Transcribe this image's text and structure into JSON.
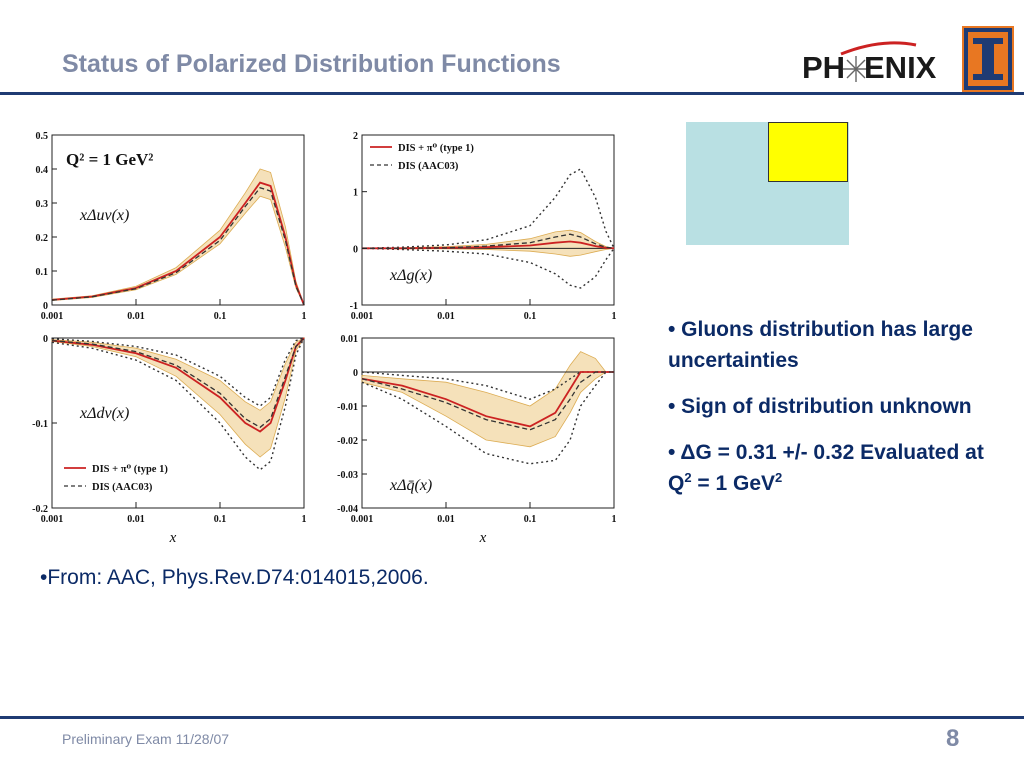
{
  "slide": {
    "title": "Status of Polarized Distribution Functions",
    "footer": "Preliminary Exam 11/28/07",
    "page_number": "8",
    "reference": "•From: AAC, Phys.Rev.D74:014015,2006."
  },
  "logos": {
    "phenix": {
      "left": "PH",
      "right": "ENIX"
    },
    "illinois": "I"
  },
  "bullets": {
    "b1": "• Gluons distribution has large uncertainties",
    "b2": "• Sign of distribution unknown",
    "b3_prefix": "• ΔG = 0.31 +/- 0.32 Evaluated at Q",
    "b3_sup1": "2",
    "b3_mid": " = 1 GeV",
    "b3_sup2": "2"
  },
  "colors": {
    "accent_rule": "#1f3b73",
    "title_gray": "#7f8aa6",
    "bullet_blue": "#0b2a66",
    "curve_red": "#cc2222",
    "band": "#f5deb3",
    "blue_box": "#b9e0e3",
    "yellow_box": "#ffff00"
  },
  "chart_data": [
    {
      "type": "line",
      "label": "xΔuv(x)",
      "annotation": "Q² = 1 GeV²",
      "xscale": "log",
      "xlim": [
        0.001,
        1
      ],
      "ylim": [
        0,
        0.5
      ],
      "xticks": [
        "0.001",
        "0.01",
        "0.1",
        "1"
      ],
      "yticks": [
        "0",
        "0.1",
        "0.2",
        "0.3",
        "0.4",
        "0.5"
      ],
      "ytick_values": [
        0,
        0.1,
        0.2,
        0.3,
        0.4,
        0.5
      ],
      "legend": [],
      "x": [
        0.001,
        0.003,
        0.01,
        0.03,
        0.1,
        0.2,
        0.3,
        0.4,
        0.6,
        0.8,
        1.0
      ],
      "series": [
        {
          "name": "DIS + π⁰ (type 1)",
          "style": "solid",
          "values": [
            0.015,
            0.025,
            0.05,
            0.1,
            0.2,
            0.3,
            0.36,
            0.35,
            0.2,
            0.06,
            0.0
          ]
        },
        {
          "name": "DIS (AAC03)",
          "style": "dashed",
          "values": [
            0.014,
            0.024,
            0.048,
            0.095,
            0.19,
            0.29,
            0.345,
            0.335,
            0.19,
            0.055,
            0.0
          ]
        }
      ],
      "band_upper": [
        0.017,
        0.027,
        0.055,
        0.11,
        0.22,
        0.33,
        0.4,
        0.39,
        0.23,
        0.07,
        0.0
      ],
      "band_lower": [
        0.013,
        0.022,
        0.045,
        0.09,
        0.18,
        0.27,
        0.32,
        0.31,
        0.17,
        0.05,
        0.0
      ]
    },
    {
      "type": "line",
      "label": "xΔg(x)",
      "xscale": "log",
      "xlim": [
        0.001,
        1
      ],
      "ylim": [
        -1,
        2
      ],
      "xticks": [
        "0.001",
        "0.01",
        "0.1",
        "1"
      ],
      "yticks": [
        "-1",
        "0",
        "1",
        "2"
      ],
      "ytick_values": [
        -1,
        0,
        1,
        2
      ],
      "legend": [
        "DIS + π⁰ (type 1)",
        "DIS (AAC03)"
      ],
      "x": [
        0.001,
        0.003,
        0.01,
        0.03,
        0.1,
        0.2,
        0.3,
        0.4,
        0.6,
        0.8,
        1.0
      ],
      "series": [
        {
          "name": "DIS + π⁰ (type 1)",
          "style": "solid",
          "values": [
            0.0,
            0.0,
            0.01,
            0.02,
            0.05,
            0.1,
            0.12,
            0.1,
            0.04,
            0.01,
            0.0
          ]
        },
        {
          "name": "DIS (AAC03)",
          "style": "dashed",
          "values": [
            0.0,
            0.0,
            0.01,
            0.04,
            0.1,
            0.2,
            0.25,
            0.2,
            0.08,
            0.02,
            0.0
          ]
        }
      ],
      "band_upper": [
        0.0,
        0.01,
        0.03,
        0.07,
        0.17,
        0.29,
        0.32,
        0.28,
        0.12,
        0.03,
        0.0
      ],
      "band_lower": [
        0.0,
        -0.01,
        -0.01,
        -0.02,
        -0.05,
        -0.1,
        -0.14,
        -0.12,
        -0.06,
        -0.02,
        0.0
      ],
      "outer_upper": [
        0.0,
        0.02,
        0.06,
        0.15,
        0.4,
        0.9,
        1.3,
        1.4,
        0.9,
        0.3,
        0.0
      ],
      "outer_lower": [
        0.0,
        -0.02,
        -0.05,
        -0.1,
        -0.25,
        -0.45,
        -0.65,
        -0.7,
        -0.5,
        -0.2,
        0.0
      ]
    },
    {
      "type": "line",
      "label": "xΔdv(x)",
      "xscale": "log",
      "xlim": [
        0.001,
        1
      ],
      "ylim": [
        -0.2,
        0
      ],
      "xticks": [
        "0.001",
        "0.01",
        "0.1",
        "1"
      ],
      "yticks": [
        "0",
        "-0.1",
        "-0.2"
      ],
      "ytick_values": [
        0,
        -0.1,
        -0.2
      ],
      "legend": [
        "DIS + π⁰ (type 1)",
        "DIS (AAC03)"
      ],
      "x": [
        0.001,
        0.003,
        0.01,
        0.03,
        0.1,
        0.2,
        0.3,
        0.4,
        0.6,
        0.8,
        1.0
      ],
      "series": [
        {
          "name": "DIS + π⁰ (type 1)",
          "style": "solid",
          "values": [
            -0.003,
            -0.008,
            -0.018,
            -0.035,
            -0.07,
            -0.1,
            -0.11,
            -0.1,
            -0.05,
            -0.01,
            0.0
          ]
        },
        {
          "name": "DIS (AAC03)",
          "style": "dashed",
          "values": [
            -0.003,
            -0.007,
            -0.016,
            -0.032,
            -0.065,
            -0.095,
            -0.105,
            -0.095,
            -0.045,
            -0.01,
            0.0
          ]
        }
      ],
      "band_upper": [
        -0.002,
        -0.005,
        -0.012,
        -0.025,
        -0.05,
        -0.075,
        -0.085,
        -0.075,
        -0.03,
        -0.005,
        0.0
      ],
      "band_lower": [
        -0.004,
        -0.01,
        -0.022,
        -0.045,
        -0.09,
        -0.125,
        -0.14,
        -0.13,
        -0.07,
        -0.015,
        0.0
      ],
      "outer_upper": [
        -0.001,
        -0.004,
        -0.01,
        -0.02,
        -0.045,
        -0.07,
        -0.08,
        -0.07,
        -0.025,
        -0.003,
        0.0
      ],
      "outer_lower": [
        -0.005,
        -0.012,
        -0.026,
        -0.05,
        -0.1,
        -0.14,
        -0.155,
        -0.145,
        -0.08,
        -0.02,
        0.0
      ]
    },
    {
      "type": "line",
      "label": "xΔq̄(x)",
      "xscale": "log",
      "xlim": [
        0.001,
        1
      ],
      "ylim": [
        -0.04,
        0.01
      ],
      "xticks": [
        "0.001",
        "0.01",
        "0.1",
        "1"
      ],
      "yticks": [
        "0.01",
        "0",
        "-0.01",
        "-0.02",
        "-0.03",
        "-0.04"
      ],
      "ytick_values": [
        0.01,
        0,
        -0.01,
        -0.02,
        -0.03,
        -0.04
      ],
      "legend": [],
      "x": [
        0.001,
        0.003,
        0.01,
        0.03,
        0.1,
        0.2,
        0.3,
        0.4,
        0.6,
        0.8,
        1.0
      ],
      "series": [
        {
          "name": "DIS + π⁰ (type 1)",
          "style": "solid",
          "values": [
            -0.002,
            -0.004,
            -0.008,
            -0.013,
            -0.016,
            -0.012,
            -0.005,
            0.0,
            0.0,
            0.0,
            0.0
          ]
        },
        {
          "name": "DIS (AAC03)",
          "style": "dashed",
          "values": [
            -0.002,
            -0.005,
            -0.009,
            -0.014,
            -0.017,
            -0.014,
            -0.008,
            -0.003,
            0.0,
            0.0,
            0.0
          ]
        }
      ],
      "band_upper": [
        -0.001,
        -0.002,
        -0.003,
        -0.006,
        -0.01,
        -0.005,
        0.002,
        0.006,
        0.004,
        0.0,
        0.0
      ],
      "band_lower": [
        -0.003,
        -0.006,
        -0.013,
        -0.02,
        -0.022,
        -0.019,
        -0.012,
        -0.006,
        -0.002,
        0.0,
        0.0
      ],
      "outer_upper": [
        0.0,
        -0.001,
        -0.002,
        -0.004,
        -0.008,
        -0.005,
        -0.002,
        0.0,
        0.0,
        0.0,
        0.0
      ],
      "outer_lower": [
        -0.003,
        -0.008,
        -0.016,
        -0.024,
        -0.027,
        -0.026,
        -0.02,
        -0.01,
        -0.004,
        0.0,
        0.0
      ]
    }
  ],
  "x_axis_label": "x"
}
